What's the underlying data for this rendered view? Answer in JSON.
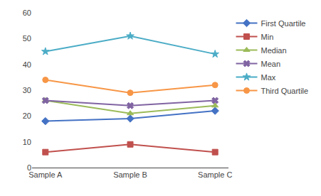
{
  "chart_data": {
    "type": "line",
    "categories": [
      "Sample A",
      "Sample B",
      "Sample C"
    ],
    "series": [
      {
        "name": "First Quartile",
        "color": "#4472C4",
        "marker": "diamond",
        "values": [
          18,
          19,
          22
        ]
      },
      {
        "name": "Min",
        "color": "#C0504D",
        "marker": "square",
        "values": [
          6,
          9,
          6
        ]
      },
      {
        "name": "Median",
        "color": "#9BBB59",
        "marker": "triangle-up",
        "values": [
          26,
          21,
          24
        ]
      },
      {
        "name": "Mean",
        "color": "#8064A2",
        "marker": "x",
        "values": [
          26,
          24,
          26
        ]
      },
      {
        "name": "Max",
        "color": "#4BACC6",
        "marker": "star",
        "values": [
          45,
          51,
          44
        ]
      },
      {
        "name": "Third Quartile",
        "color": "#F79646",
        "marker": "circle",
        "values": [
          34,
          29,
          32
        ]
      }
    ],
    "ylim": [
      0,
      60
    ],
    "yticks": [
      0,
      10,
      20,
      30,
      40,
      50,
      60
    ],
    "grid": false,
    "legend": "right"
  }
}
